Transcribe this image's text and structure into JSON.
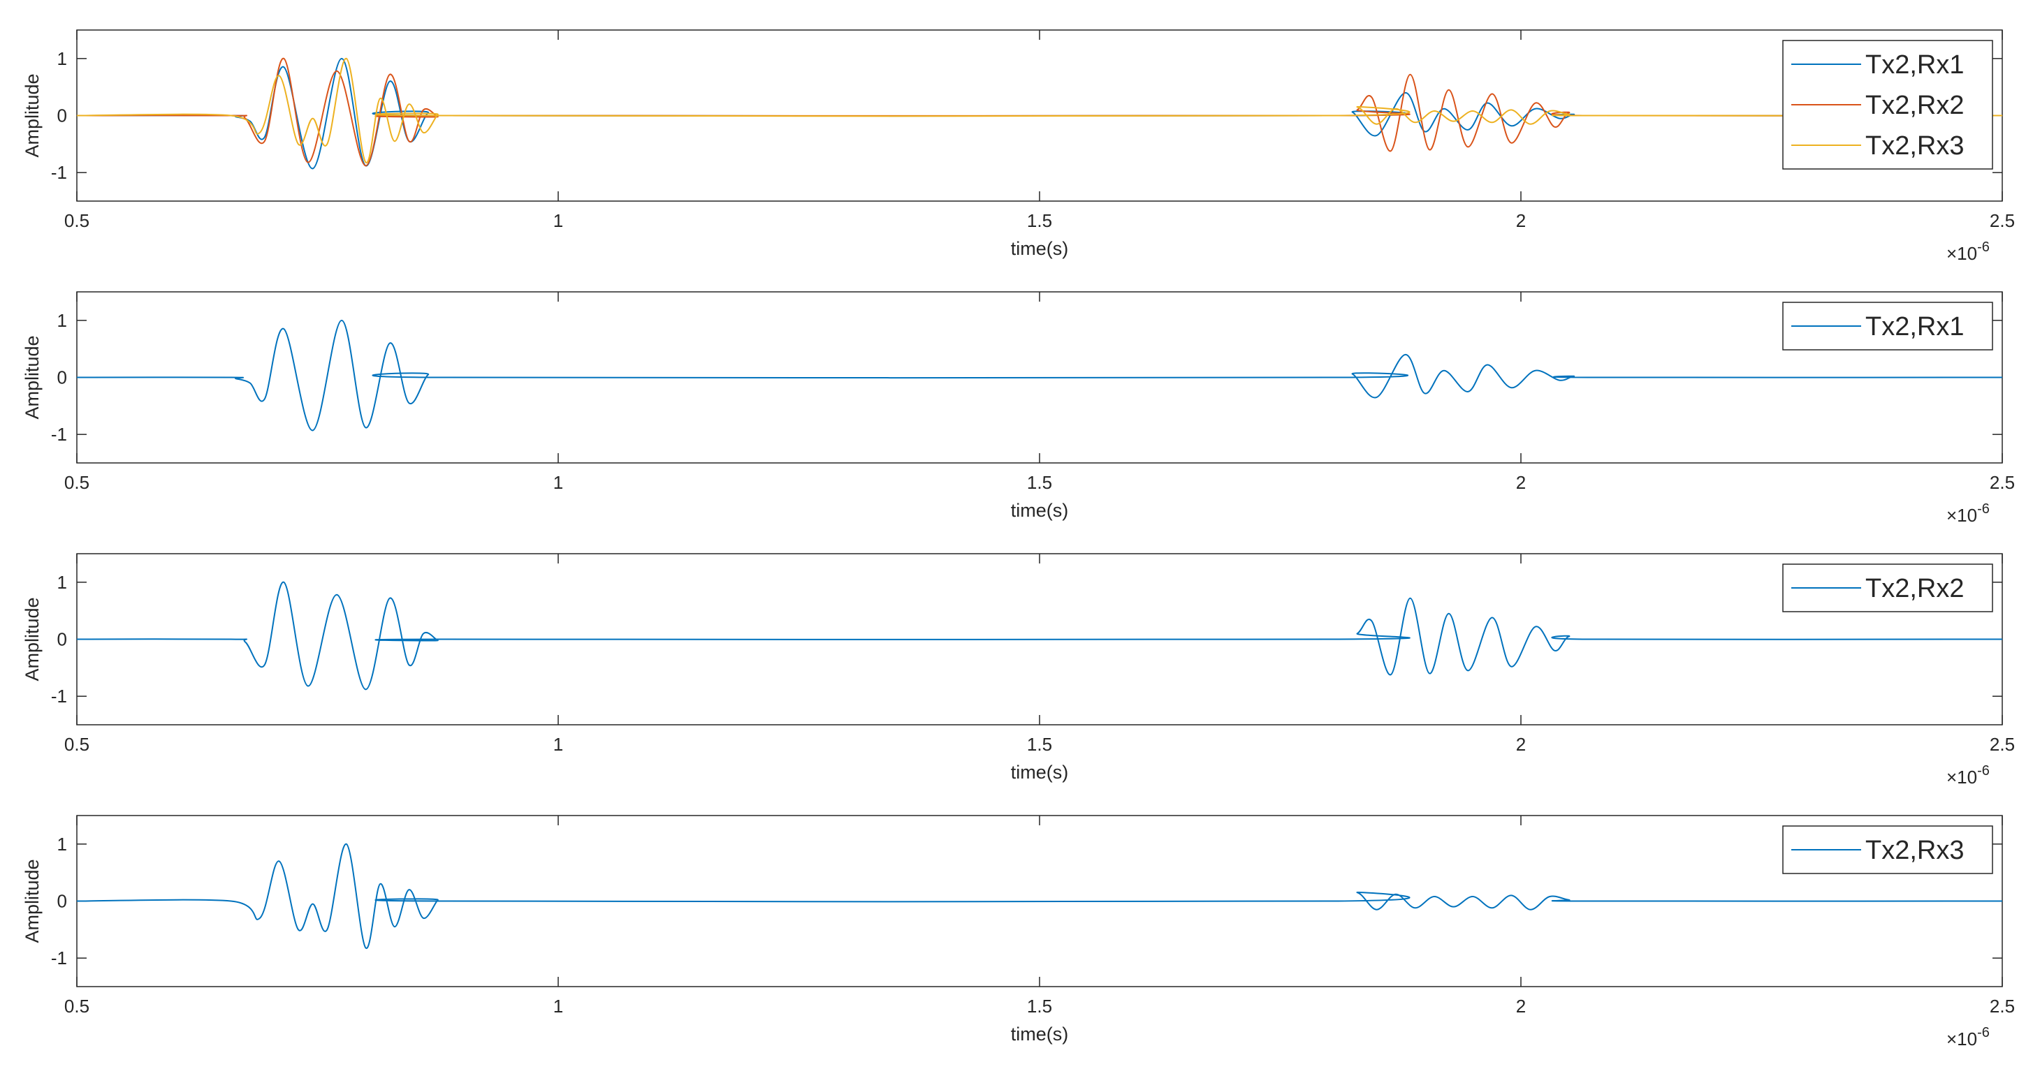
{
  "chart_data": [
    {
      "type": "line",
      "xlabel": "time(s)",
      "ylabel": "Amplitude",
      "x_multiplier_label": "×10",
      "x_multiplier_exp": "-6",
      "xlim": [
        5e-07,
        2.5e-06
      ],
      "ylim": [
        -1.5,
        1.5
      ],
      "xticks": [
        5e-07,
        1e-06,
        1.5e-06,
        2e-06,
        2.5e-06
      ],
      "xtick_labels": [
        "0.5",
        "1",
        "1.5",
        "2",
        "2.5"
      ],
      "yticks": [
        1,
        0,
        -1
      ],
      "ytick_labels": [
        "1",
        "0",
        "-1"
      ],
      "legend_position": "top-right",
      "series": [
        {
          "name": "Tx2,Rx1",
          "color": "#0072BD",
          "bursts": [
            {
              "start": 6.6e-07,
              "end": 8.8e-07,
              "peaks": [
                [
                  6.65e-07,
                  -0.02
                ],
                [
                  6.8e-07,
                  -0.1
                ],
                [
                  6.95e-07,
                  -0.38
                ],
                [
                  7.15e-07,
                  0.85
                ],
                [
                  7.45e-07,
                  -0.93
                ],
                [
                  7.75e-07,
                  1.0
                ],
                [
                  8e-07,
                  -0.88
                ],
                [
                  8.25e-07,
                  0.6
                ],
                [
                  8.45e-07,
                  -0.45
                ],
                [
                  8.65e-07,
                  0.05
                ]
              ]
            },
            {
              "start": 1.81e-06,
              "end": 2.07e-06,
              "peaks": [
                [
                  1.825e-06,
                  0.06
                ],
                [
                  1.85e-06,
                  -0.35
                ],
                [
                  1.88e-06,
                  0.4
                ],
                [
                  1.9e-06,
                  -0.28
                ],
                [
                  1.92e-06,
                  0.12
                ],
                [
                  1.945e-06,
                  -0.25
                ],
                [
                  1.965e-06,
                  0.22
                ],
                [
                  1.99e-06,
                  -0.18
                ],
                [
                  2.015e-06,
                  0.12
                ],
                [
                  2.04e-06,
                  -0.05
                ],
                [
                  2.055e-06,
                  0.02
                ]
              ]
            }
          ]
        },
        {
          "name": "Tx2,Rx2",
          "color": "#D95319",
          "bursts": [
            {
              "start": 6.6e-07,
              "end": 8.8e-07,
              "peaks": [
                [
                  6.75e-07,
                  -0.05
                ],
                [
                  6.95e-07,
                  -0.45
                ],
                [
                  7.15e-07,
                  1.0
                ],
                [
                  7.4e-07,
                  -0.82
                ],
                [
                  7.7e-07,
                  0.78
                ],
                [
                  8e-07,
                  -0.88
                ],
                [
                  8.25e-07,
                  0.72
                ],
                [
                  8.45e-07,
                  -0.45
                ],
                [
                  8.6e-07,
                  0.1
                ],
                [
                  8.75e-07,
                  -0.02
                ]
              ]
            },
            {
              "start": 1.81e-06,
              "end": 2.07e-06,
              "peaks": [
                [
                  1.83e-06,
                  0.1
                ],
                [
                  1.845e-06,
                  0.32
                ],
                [
                  1.865e-06,
                  -0.62
                ],
                [
                  1.885e-06,
                  0.72
                ],
                [
                  1.905e-06,
                  -0.6
                ],
                [
                  1.925e-06,
                  0.45
                ],
                [
                  1.945e-06,
                  -0.55
                ],
                [
                  1.97e-06,
                  0.38
                ],
                [
                  1.99e-06,
                  -0.48
                ],
                [
                  2.015e-06,
                  0.22
                ],
                [
                  2.035e-06,
                  -0.2
                ],
                [
                  2.05e-06,
                  0.05
                ]
              ]
            }
          ]
        },
        {
          "name": "Tx2,Rx3",
          "color": "#EDB120",
          "bursts": [
            {
              "start": 6.6e-07,
              "end": 8.8e-07,
              "peaks": [
                [
                  6.9e-07,
                  -0.3
                ],
                [
                  7.1e-07,
                  0.7
                ],
                [
                  7.3e-07,
                  -0.5
                ],
                [
                  7.45e-07,
                  -0.05
                ],
                [
                  7.6e-07,
                  -0.5
                ],
                [
                  7.8e-07,
                  1.0
                ],
                [
                  8e-07,
                  -0.82
                ],
                [
                  8.15e-07,
                  0.3
                ],
                [
                  8.3e-07,
                  -0.45
                ],
                [
                  8.45e-07,
                  0.2
                ],
                [
                  8.6e-07,
                  -0.3
                ],
                [
                  8.75e-07,
                  0.02
                ]
              ]
            },
            {
              "start": 1.81e-06,
              "end": 2.07e-06,
              "peaks": [
                [
                  1.83e-06,
                  0.15
                ],
                [
                  1.85e-06,
                  -0.15
                ],
                [
                  1.87e-06,
                  0.12
                ],
                [
                  1.89e-06,
                  -0.12
                ],
                [
                  1.91e-06,
                  0.08
                ],
                [
                  1.93e-06,
                  -0.1
                ],
                [
                  1.95e-06,
                  0.08
                ],
                [
                  1.97e-06,
                  -0.12
                ],
                [
                  1.99e-06,
                  0.1
                ],
                [
                  2.01e-06,
                  -0.15
                ],
                [
                  2.03e-06,
                  0.08
                ],
                [
                  2.05e-06,
                  0.02
                ]
              ]
            }
          ]
        }
      ]
    },
    {
      "type": "line",
      "xlabel": "time(s)",
      "ylabel": "Amplitude",
      "x_multiplier_label": "×10",
      "x_multiplier_exp": "-6",
      "xlim": [
        5e-07,
        2.5e-06
      ],
      "ylim": [
        -1.5,
        1.5
      ],
      "xticks": [
        5e-07,
        1e-06,
        1.5e-06,
        2e-06,
        2.5e-06
      ],
      "xtick_labels": [
        "0.5",
        "1",
        "1.5",
        "2",
        "2.5"
      ],
      "yticks": [
        1,
        0,
        -1
      ],
      "ytick_labels": [
        "1",
        "0",
        "-1"
      ],
      "legend_position": "top-right",
      "series": [
        {
          "name": "Tx2,Rx1",
          "color": "#0072BD",
          "bursts": [
            {
              "start": 6.6e-07,
              "end": 8.8e-07,
              "peaks": [
                [
                  6.65e-07,
                  -0.02
                ],
                [
                  6.8e-07,
                  -0.1
                ],
                [
                  6.95e-07,
                  -0.38
                ],
                [
                  7.15e-07,
                  0.85
                ],
                [
                  7.45e-07,
                  -0.93
                ],
                [
                  7.75e-07,
                  1.0
                ],
                [
                  8e-07,
                  -0.88
                ],
                [
                  8.25e-07,
                  0.6
                ],
                [
                  8.45e-07,
                  -0.45
                ],
                [
                  8.65e-07,
                  0.05
                ]
              ]
            },
            {
              "start": 1.81e-06,
              "end": 2.07e-06,
              "peaks": [
                [
                  1.825e-06,
                  0.06
                ],
                [
                  1.85e-06,
                  -0.35
                ],
                [
                  1.88e-06,
                  0.4
                ],
                [
                  1.9e-06,
                  -0.28
                ],
                [
                  1.92e-06,
                  0.12
                ],
                [
                  1.945e-06,
                  -0.25
                ],
                [
                  1.965e-06,
                  0.22
                ],
                [
                  1.99e-06,
                  -0.18
                ],
                [
                  2.015e-06,
                  0.12
                ],
                [
                  2.04e-06,
                  -0.05
                ],
                [
                  2.055e-06,
                  0.02
                ]
              ]
            }
          ]
        }
      ]
    },
    {
      "type": "line",
      "xlabel": "time(s)",
      "ylabel": "Amplitude",
      "x_multiplier_label": "×10",
      "x_multiplier_exp": "-6",
      "xlim": [
        5e-07,
        2.5e-06
      ],
      "ylim": [
        -1.5,
        1.5
      ],
      "xticks": [
        5e-07,
        1e-06,
        1.5e-06,
        2e-06,
        2.5e-06
      ],
      "xtick_labels": [
        "0.5",
        "1",
        "1.5",
        "2",
        "2.5"
      ],
      "yticks": [
        1,
        0,
        -1
      ],
      "ytick_labels": [
        "1",
        "0",
        "-1"
      ],
      "legend_position": "top-right",
      "series": [
        {
          "name": "Tx2,Rx2",
          "color": "#0072BD",
          "bursts": [
            {
              "start": 6.6e-07,
              "end": 8.8e-07,
              "peaks": [
                [
                  6.75e-07,
                  -0.05
                ],
                [
                  6.95e-07,
                  -0.45
                ],
                [
                  7.15e-07,
                  1.0
                ],
                [
                  7.4e-07,
                  -0.82
                ],
                [
                  7.7e-07,
                  0.78
                ],
                [
                  8e-07,
                  -0.88
                ],
                [
                  8.25e-07,
                  0.72
                ],
                [
                  8.45e-07,
                  -0.45
                ],
                [
                  8.6e-07,
                  0.1
                ],
                [
                  8.75e-07,
                  -0.02
                ]
              ]
            },
            {
              "start": 1.81e-06,
              "end": 2.07e-06,
              "peaks": [
                [
                  1.83e-06,
                  0.1
                ],
                [
                  1.845e-06,
                  0.32
                ],
                [
                  1.865e-06,
                  -0.62
                ],
                [
                  1.885e-06,
                  0.72
                ],
                [
                  1.905e-06,
                  -0.6
                ],
                [
                  1.925e-06,
                  0.45
                ],
                [
                  1.945e-06,
                  -0.55
                ],
                [
                  1.97e-06,
                  0.38
                ],
                [
                  1.99e-06,
                  -0.48
                ],
                [
                  2.015e-06,
                  0.22
                ],
                [
                  2.035e-06,
                  -0.2
                ],
                [
                  2.05e-06,
                  0.05
                ]
              ]
            }
          ]
        }
      ]
    },
    {
      "type": "line",
      "xlabel": "time(s)",
      "ylabel": "Amplitude",
      "x_multiplier_label": "×10",
      "x_multiplier_exp": "-6",
      "xlim": [
        5e-07,
        2.5e-06
      ],
      "ylim": [
        -1.5,
        1.5
      ],
      "xticks": [
        5e-07,
        1e-06,
        1.5e-06,
        2e-06,
        2.5e-06
      ],
      "xtick_labels": [
        "0.5",
        "1",
        "1.5",
        "2",
        "2.5"
      ],
      "yticks": [
        1,
        0,
        -1
      ],
      "ytick_labels": [
        "1",
        "0",
        "-1"
      ],
      "legend_position": "top-right",
      "series": [
        {
          "name": "Tx2,Rx3",
          "color": "#0072BD",
          "bursts": [
            {
              "start": 6.6e-07,
              "end": 8.8e-07,
              "peaks": [
                [
                  6.9e-07,
                  -0.3
                ],
                [
                  7.1e-07,
                  0.7
                ],
                [
                  7.3e-07,
                  -0.5
                ],
                [
                  7.45e-07,
                  -0.05
                ],
                [
                  7.6e-07,
                  -0.5
                ],
                [
                  7.8e-07,
                  1.0
                ],
                [
                  8e-07,
                  -0.82
                ],
                [
                  8.15e-07,
                  0.3
                ],
                [
                  8.3e-07,
                  -0.45
                ],
                [
                  8.45e-07,
                  0.2
                ],
                [
                  8.6e-07,
                  -0.3
                ],
                [
                  8.75e-07,
                  0.02
                ]
              ]
            },
            {
              "start": 1.81e-06,
              "end": 2.07e-06,
              "peaks": [
                [
                  1.83e-06,
                  0.15
                ],
                [
                  1.85e-06,
                  -0.15
                ],
                [
                  1.87e-06,
                  0.12
                ],
                [
                  1.89e-06,
                  -0.12
                ],
                [
                  1.91e-06,
                  0.08
                ],
                [
                  1.93e-06,
                  -0.1
                ],
                [
                  1.95e-06,
                  0.08
                ],
                [
                  1.97e-06,
                  -0.12
                ],
                [
                  1.99e-06,
                  0.1
                ],
                [
                  2.01e-06,
                  -0.15
                ],
                [
                  2.03e-06,
                  0.08
                ],
                [
                  2.05e-06,
                  0.02
                ]
              ]
            }
          ]
        }
      ]
    }
  ]
}
